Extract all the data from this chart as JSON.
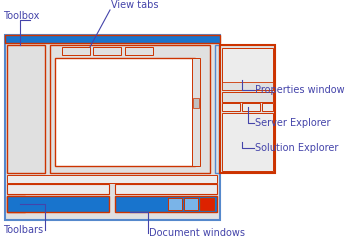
{
  "bg_color": "#ffffff",
  "oc": "#cc3300",
  "fl": "#e0e0e0",
  "fl2": "#ececec",
  "fb": "#1874cd",
  "btn_blue": "#7ab4e8",
  "btn_red": "#dd2200",
  "lc": "#4444aa",
  "fs": 7.0,
  "labels": {
    "toolbars": "Toolbars",
    "doc_windows": "Document windows",
    "solution_explorer": "Solution Explorer",
    "server_explorer": "Server Explorer",
    "properties_window": "Properties window",
    "toolbox": "Toolbox",
    "view_tabs": "View tabs"
  }
}
